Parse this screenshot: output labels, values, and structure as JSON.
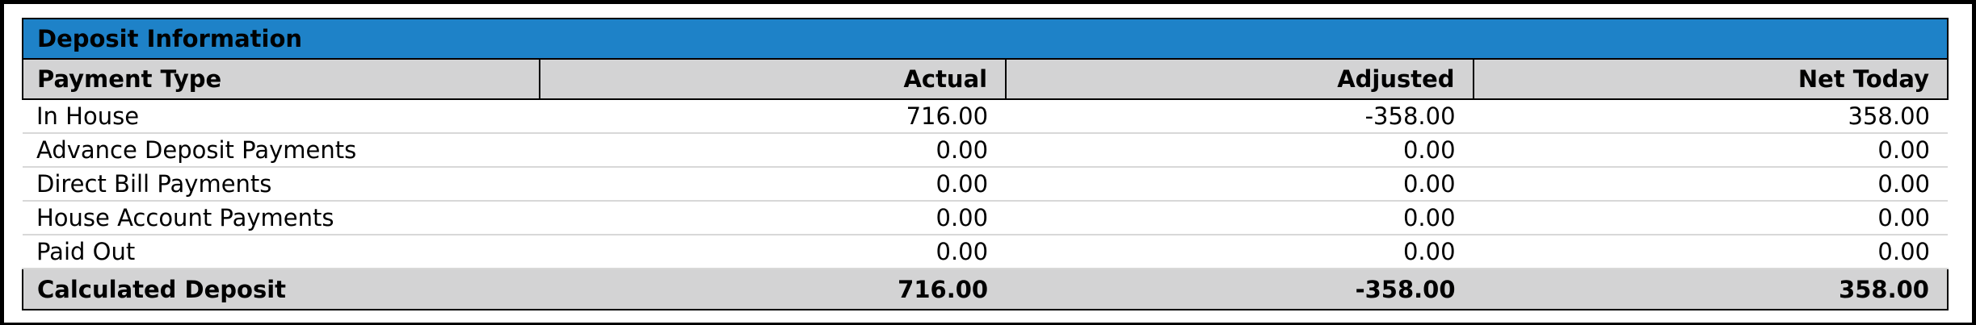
{
  "header": {
    "title": "Deposit Information"
  },
  "table": {
    "columns": [
      "Payment Type",
      "Actual",
      "Adjusted",
      "Net Today"
    ],
    "rows": [
      [
        "In House",
        "716.00",
        "-358.00",
        "358.00"
      ],
      [
        "Advance Deposit Payments",
        "0.00",
        "0.00",
        "0.00"
      ],
      [
        "Direct Bill Payments",
        "0.00",
        "0.00",
        "0.00"
      ],
      [
        "House Account Payments",
        "0.00",
        "0.00",
        "0.00"
      ],
      [
        "Paid Out",
        "0.00",
        "0.00",
        "0.00"
      ]
    ],
    "total": [
      "Calculated Deposit",
      "716.00",
      "-358.00",
      "358.00"
    ]
  }
}
